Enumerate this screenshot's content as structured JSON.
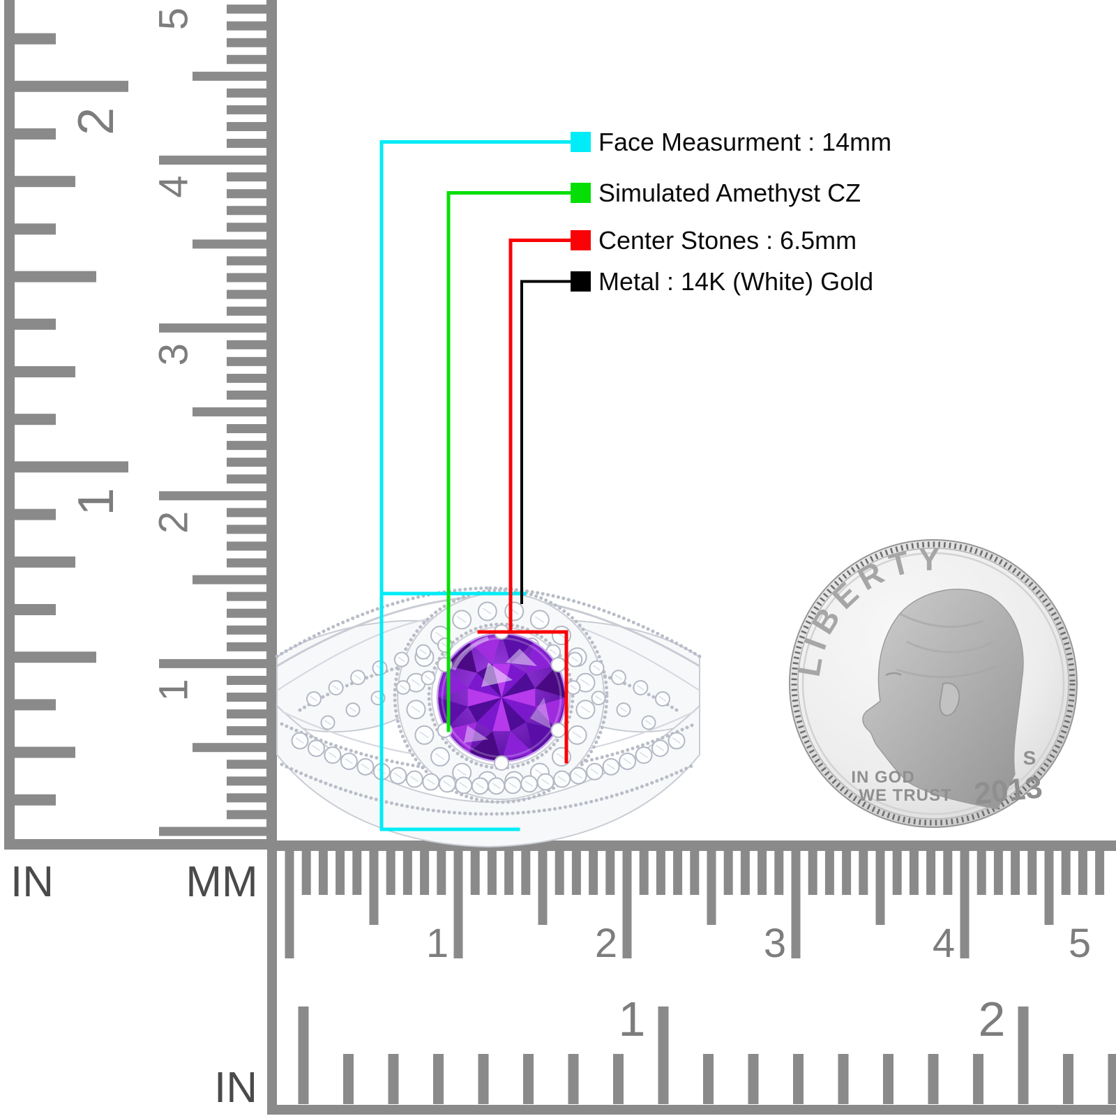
{
  "annotations": {
    "items": [
      {
        "id": "face-measurement",
        "label": "Face Measurment : 14mm",
        "color": "#00ecf6"
      },
      {
        "id": "simulated-stone",
        "label": "Simulated Amethyst CZ",
        "color": "#06df06"
      },
      {
        "id": "center-stone",
        "label": "Center Stones : 6.5mm",
        "color": "#f80406"
      },
      {
        "id": "metal",
        "label": "Metal : 14K (White) Gold",
        "color": "#000000"
      }
    ]
  },
  "rulers": {
    "left_inch": {
      "unit_label": "IN",
      "numbers": [
        "1",
        "2"
      ]
    },
    "left_mm": {
      "unit_label": "MM",
      "numbers": [
        "1",
        "2",
        "3",
        "4",
        "5"
      ]
    },
    "bottom_mm": {
      "numbers": [
        "1",
        "2",
        "3",
        "4",
        "5"
      ]
    },
    "bottom_inch": {
      "unit_label": "IN",
      "numbers": [
        "1",
        "2"
      ]
    }
  },
  "coin": {
    "legend": "LIBERTY",
    "motto_line1": "IN GOD",
    "motto_line2": "WE TRUST",
    "mint_mark": "S",
    "year": "2013"
  },
  "ring": {
    "stone_color": "#6d13bb",
    "metal_color": "#f7f8fa"
  }
}
